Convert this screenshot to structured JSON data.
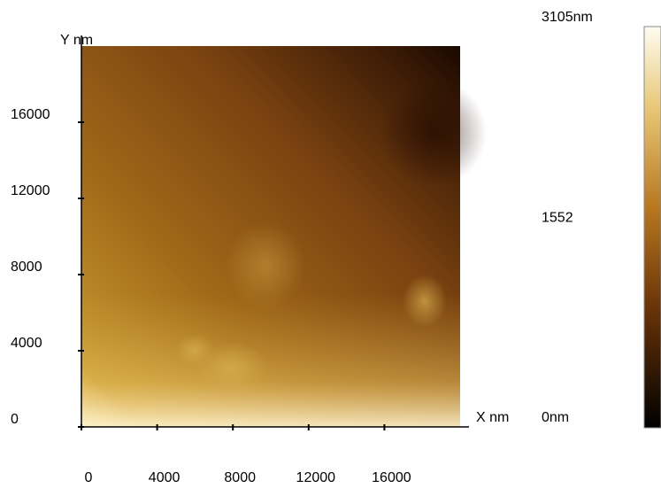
{
  "chart_data": {
    "type": "heatmap",
    "x_label": "X nm",
    "y_label": "Y nm",
    "xlim": [
      0,
      20000
    ],
    "ylim": [
      0,
      20000
    ],
    "xticks": [
      0,
      4000,
      8000,
      12000,
      16000
    ],
    "yticks": [
      0,
      4000,
      8000,
      12000,
      16000
    ],
    "colorbar": {
      "zlim": [
        0,
        3105
      ],
      "ticks": [
        {
          "value": 0,
          "label": "0nm"
        },
        1552,
        {
          "value": 3105,
          "label": "3105nm"
        }
      ]
    }
  }
}
